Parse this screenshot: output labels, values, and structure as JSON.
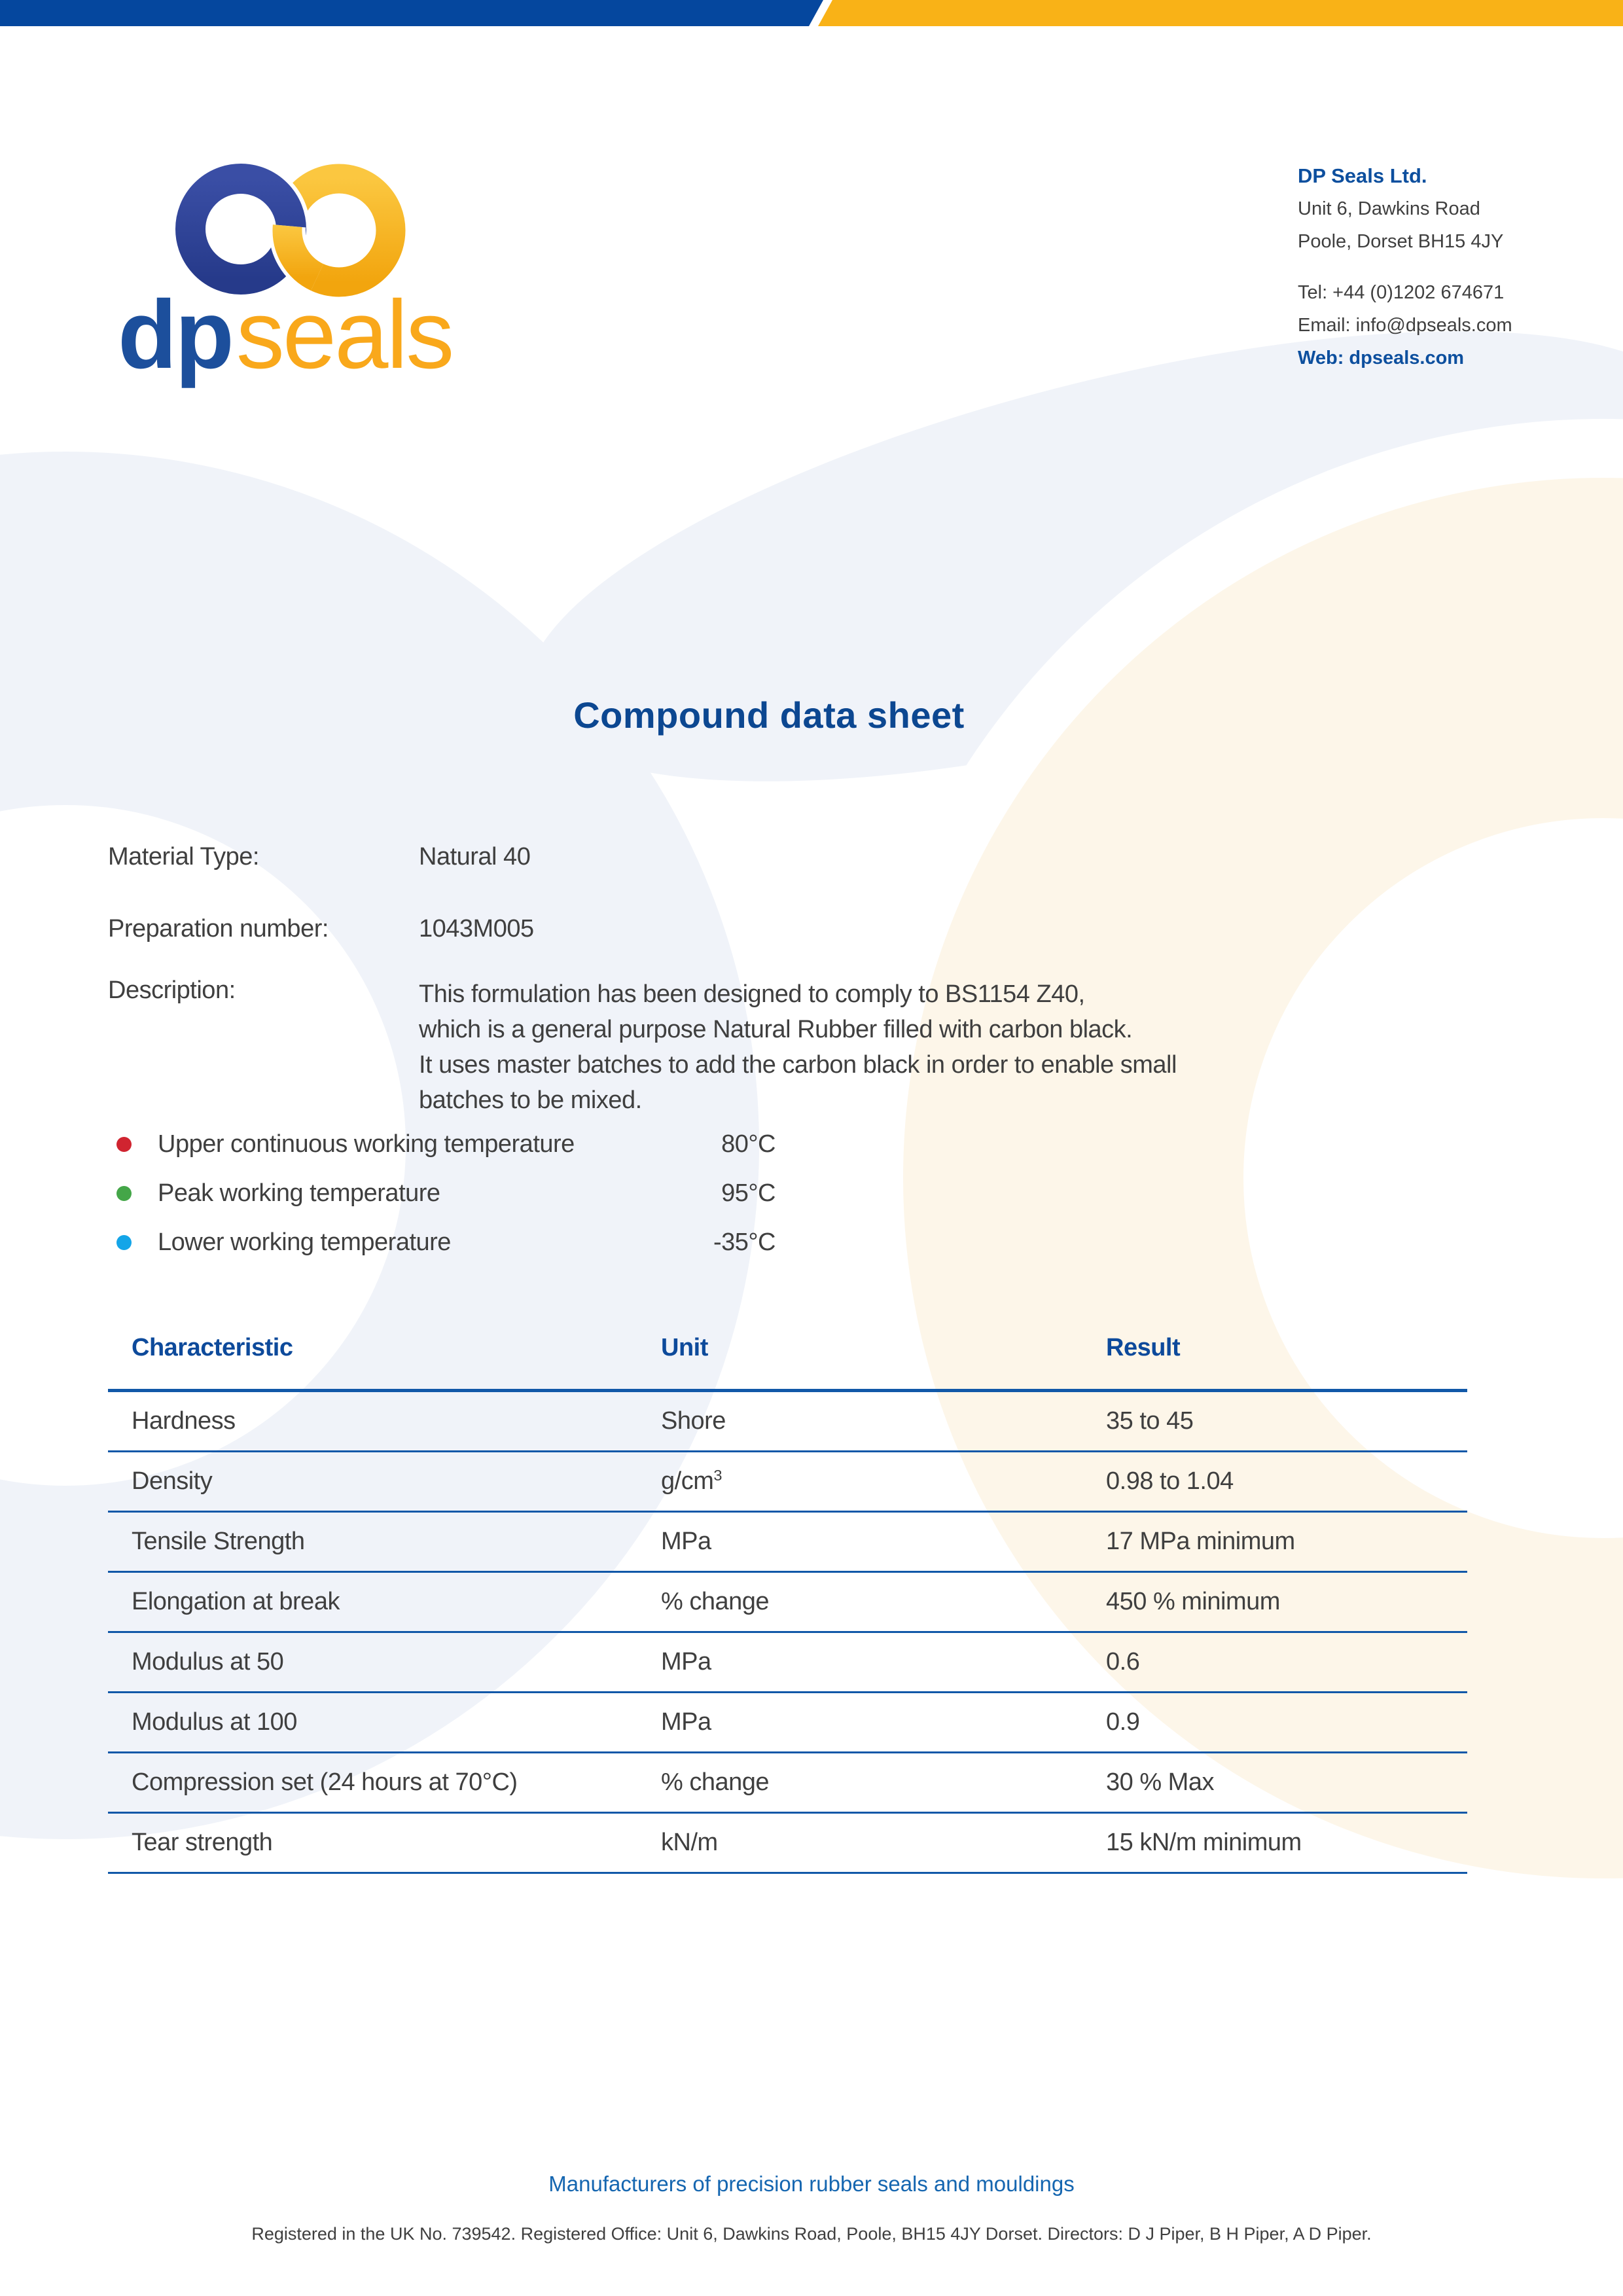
{
  "brand": {
    "bar_blue": "#05479e",
    "bar_yellow": "#f9b217",
    "heading_blue": "#0c4791",
    "table_line_blue": "#1158a8",
    "logo_dp": "dp",
    "logo_seals": "seals"
  },
  "contact": {
    "company": "DP Seals Ltd.",
    "address1": "Unit 6, Dawkins Road",
    "address2": "Poole, Dorset BH15 4JY",
    "tel": "Tel: +44 (0)1202 674671",
    "email": "Email: info@dpseals.com",
    "web": "Web: dpseals.com"
  },
  "title": "Compound data sheet",
  "material": {
    "material_type_label": "Material Type:",
    "material_type_value": "Natural 40",
    "preparation_label": "Preparation number:",
    "preparation_value": "1043M005",
    "description_label": "Description:",
    "description_lines": [
      "This formulation has been designed to comply to BS1154 Z40,",
      "which is a general purpose Natural Rubber filled with carbon black.",
      "It uses master batches to add the carbon black in order to enable small",
      "batches to be mixed."
    ]
  },
  "temperatures": [
    {
      "label": "Upper continuous working temperature",
      "value": "80°C",
      "bullet_color": "#d02430"
    },
    {
      "label": "Peak working temperature",
      "value": "95°C",
      "bullet_color": "#44a648"
    },
    {
      "label": "Lower working temperature",
      "value": "-35°C",
      "bullet_color": "#14a5e8"
    }
  ],
  "table": {
    "headers": [
      "Characteristic",
      "Unit",
      "Result"
    ],
    "rows": [
      {
        "characteristic": "Hardness",
        "unit": "Shore",
        "unit_sup": "",
        "result": "35 to 45"
      },
      {
        "characteristic": "Density",
        "unit": "g/cm",
        "unit_sup": "3",
        "result": "0.98 to 1.04"
      },
      {
        "characteristic": "Tensile Strength",
        "unit": "MPa",
        "unit_sup": "",
        "result": "17 MPa minimum"
      },
      {
        "characteristic": "Elongation at break",
        "unit": "% change",
        "unit_sup": "",
        "result": "450 % minimum"
      },
      {
        "characteristic": "Modulus at 50",
        "unit": "MPa",
        "unit_sup": "",
        "result": "0.6"
      },
      {
        "characteristic": "Modulus at 100",
        "unit": "MPa",
        "unit_sup": "",
        "result": "0.9"
      },
      {
        "characteristic": "Compression set (24 hours at 70°C)",
        "unit": "% change",
        "unit_sup": "",
        "result": "30 % Max"
      },
      {
        "characteristic": "Tear strength",
        "unit": "kN/m",
        "unit_sup": "",
        "result": "15 kN/m minimum"
      }
    ]
  },
  "footer": {
    "tagline": "Manufacturers of precision rubber seals and mouldings",
    "legal": "Registered in the UK No. 739542. Registered Office: Unit 6, Dawkins Road, Poole, BH15 4JY Dorset. Directors: D J Piper, B H Piper, A D Piper."
  }
}
